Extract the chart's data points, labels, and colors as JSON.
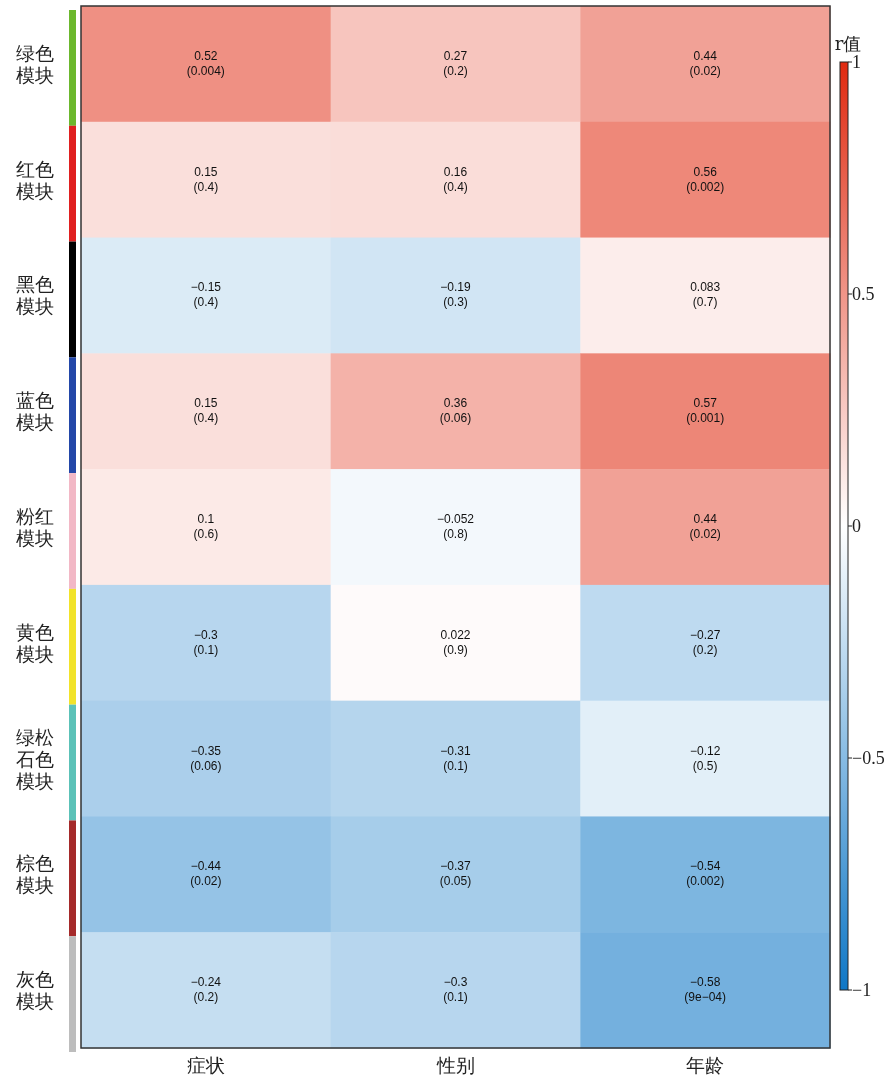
{
  "chart_data": {
    "type": "heatmap",
    "clabel": "r值",
    "categories": [
      "症状",
      "性别",
      "年龄"
    ],
    "y_categories": [
      "绿色模块",
      "红色模块",
      "黑色模块",
      "蓝色模块",
      "粉红模块",
      "黄色模块",
      "绿松石色模块",
      "棕色模块",
      "灰色模块"
    ],
    "cells": [
      [
        0.52,
        0.27,
        0.44
      ],
      [
        0.15,
        0.16,
        0.56
      ],
      [
        -0.15,
        -0.19,
        0.083
      ],
      [
        0.15,
        0.36,
        0.57
      ],
      [
        0.1,
        -0.052,
        0.44
      ],
      [
        -0.3,
        0.022,
        -0.27
      ],
      [
        -0.35,
        -0.31,
        -0.12
      ],
      [
        -0.44,
        -0.37,
        -0.54
      ],
      [
        -0.24,
        -0.3,
        -0.58
      ]
    ],
    "cell_labels": [
      [
        "0.52\n(0.004)",
        "0.27\n(0.2)",
        "0.44\n(0.02)"
      ],
      [
        "0.15\n(0.4)",
        "0.16\n(0.4)",
        "0.56\n(0.002)"
      ],
      [
        "−0.15\n(0.4)",
        "−0.19\n(0.3)",
        "0.083\n(0.7)"
      ],
      [
        "0.15\n(0.4)",
        "0.36\n(0.06)",
        "0.57\n(0.001)"
      ],
      [
        "0.1\n(0.6)",
        "−0.052\n(0.8)",
        "0.44\n(0.02)"
      ],
      [
        "−0.3\n(0.1)",
        "0.022\n(0.9)",
        "−0.27\n(0.2)"
      ],
      [
        "−0.35\n(0.06)",
        "−0.31\n(0.1)",
        "−0.12\n(0.5)"
      ],
      [
        "−0.44\n(0.02)",
        "−0.37\n(0.05)",
        "−0.54\n(0.002)"
      ],
      [
        "−0.24\n(0.2)",
        "−0.3\n(0.1)",
        "−0.58\n(9e−04)"
      ]
    ],
    "colors": [
      "#0f77c6",
      "#ffffff",
      "#e02a10"
    ],
    "clim": [
      -1,
      1
    ],
    "cticks": [
      1,
      0.5,
      0,
      {
        "value": -0.5,
        "label": "−0.5"
      },
      {
        "value": -1,
        "label": "−1"
      }
    ]
  }
}
